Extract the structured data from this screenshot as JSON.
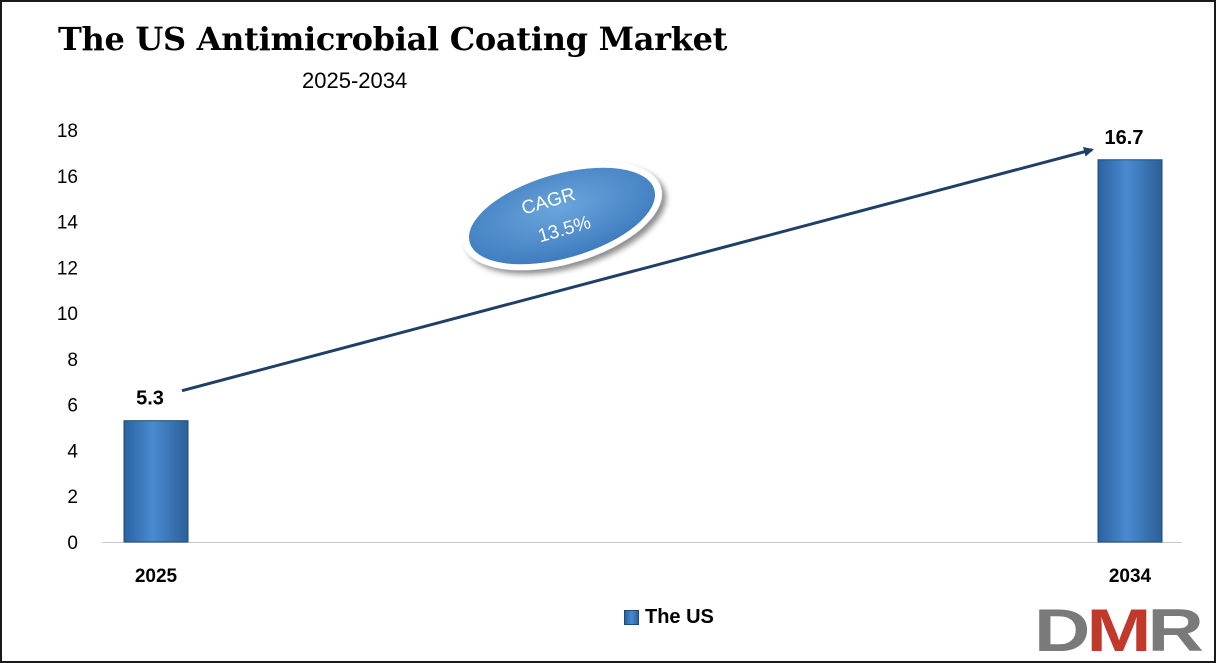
{
  "title": "The US Antimicrobial Coating Market",
  "subtitle": "2025-2034",
  "cagr": {
    "label": "CAGR",
    "value": "13.5%"
  },
  "logo": {
    "text": "DMR"
  },
  "chart_data": {
    "type": "bar",
    "categories": [
      "2025",
      "2034"
    ],
    "series": [
      {
        "name": "The US",
        "values": [
          5.3,
          16.7
        ],
        "color": "#3a7ac0"
      }
    ],
    "data_labels": [
      "5.3",
      "16.7"
    ],
    "ylim": [
      0,
      18
    ],
    "yticks": [
      0,
      2,
      4,
      6,
      8,
      10,
      12,
      14,
      16,
      18
    ],
    "xlabel": "",
    "ylabel": "",
    "grid": false,
    "legend": "bottom",
    "arrow_color": "#1f3f66"
  }
}
